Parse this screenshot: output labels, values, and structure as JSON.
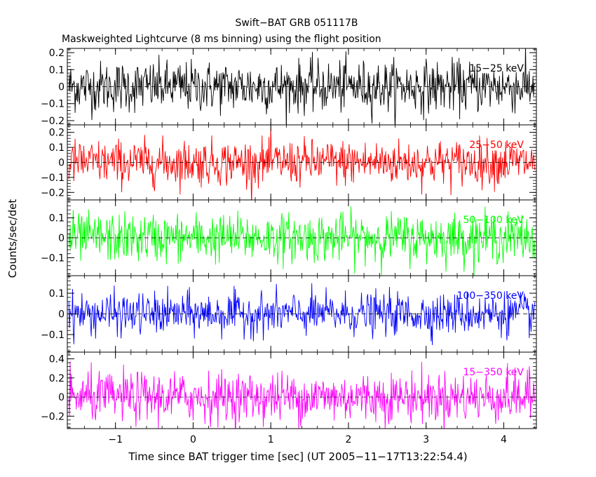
{
  "title": "Swift−BAT GRB 051117B",
  "subtitle": "Maskweighted Lightcurve (8 ms binning) using the flight position",
  "chart_data": {
    "type": "line",
    "title": "Swift−BAT GRB 051117B",
    "subtitle": "Maskweighted Lightcurve (8 ms binning) using the flight position",
    "xlabel": "Time since BAT trigger time [sec] (UT 2005−11−17T13:22:54.4)",
    "ylabel": "Counts/sec/det",
    "xlim": [
      -1.62,
      4.42
    ],
    "data_x_range": [
      -1.6,
      4.4
    ],
    "bin_width_s": 0.008,
    "x_ticks": [
      "−1",
      "0",
      "1",
      "2",
      "3",
      "4"
    ],
    "x_tick_values": [
      -1,
      0,
      1,
      2,
      3,
      4
    ],
    "grid": false,
    "zero_line": true,
    "panels": [
      {
        "name": "15−25 keV",
        "color": "#000000",
        "ylim": [
          -0.225,
          0.225
        ],
        "y_ticks": [
          "−0.2",
          "−0.1",
          "0",
          "0.1",
          "0.2"
        ],
        "y_tick_values": [
          -0.2,
          -0.1,
          0,
          0.1,
          0.2
        ],
        "noise_sd": 0.075,
        "mean": 0.0
      },
      {
        "name": "25−50 keV",
        "color": "#ff0000",
        "ylim": [
          -0.25,
          0.25
        ],
        "y_ticks": [
          "−0.2",
          "−0.1",
          "0",
          "0.1",
          "0.2"
        ],
        "y_tick_values": [
          -0.2,
          -0.1,
          0,
          0.1,
          0.2
        ],
        "noise_sd": 0.075,
        "mean": 0.0
      },
      {
        "name": "50−100 keV",
        "color": "#00ff00",
        "ylim": [
          -0.19,
          0.19
        ],
        "y_ticks": [
          "−0.1",
          "0",
          "0.1"
        ],
        "y_tick_values": [
          -0.1,
          0,
          0.1
        ],
        "noise_sd": 0.06,
        "mean": 0.0
      },
      {
        "name": "100−350 keV",
        "color": "#0000ff",
        "ylim": [
          -0.185,
          0.185
        ],
        "y_ticks": [
          "−0.1",
          "0",
          "0.1"
        ],
        "y_tick_values": [
          -0.1,
          0,
          0.1
        ],
        "noise_sd": 0.05,
        "mean": 0.0
      },
      {
        "name": "15−350 keV",
        "color": "#ff00ff",
        "ylim": [
          -0.33,
          0.47
        ],
        "y_ticks": [
          "−0.2",
          "0",
          "0.2",
          "0.4"
        ],
        "y_tick_values": [
          -0.2,
          0,
          0.2,
          0.4
        ],
        "noise_sd": 0.13,
        "mean": 0.0
      }
    ]
  }
}
